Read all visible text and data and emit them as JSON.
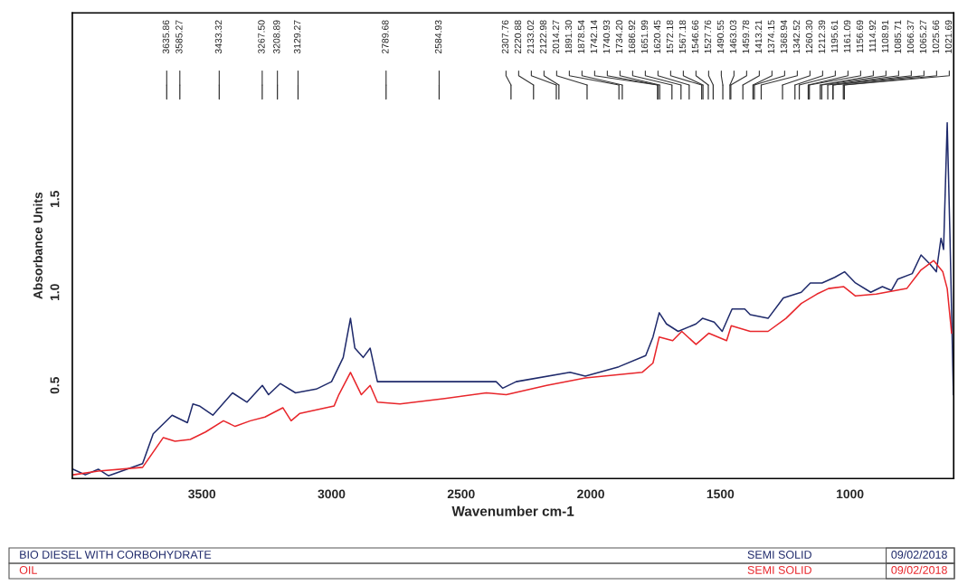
{
  "chart_data": {
    "type": "line",
    "xlabel": "Wavenumber cm-1",
    "ylabel": "Absorbance Units",
    "xlim": [
      4000,
      600
    ],
    "xticks": [
      3500,
      3000,
      2500,
      2000,
      1500,
      1000
    ],
    "ylim": [
      0,
      2.5
    ],
    "yticks": [
      0.5,
      {
        "value": 1.0,
        "label": "1.0"
      },
      1.5
    ],
    "grid": false,
    "legend": "bottom",
    "line_style": "solid",
    "marker": "none",
    "series": [
      {
        "name": "BIO DIESEL WITH CORBOHYDRATE",
        "color": "#1f2a6b",
        "x": [
          3997,
          3950,
          3900,
          3861,
          3729,
          3688,
          3615,
          3556,
          3535,
          3510,
          3458,
          3382,
          3326,
          3267,
          3243,
          3198,
          3139,
          3059,
          3000,
          2955,
          2927,
          2910,
          2878,
          2851,
          2823,
          2677,
          2503,
          2365,
          2340,
          2288,
          2080,
          2021,
          1892,
          1788,
          1760,
          1736,
          1708,
          1663,
          1594,
          1569,
          1524,
          1493,
          1455,
          1406,
          1385,
          1316,
          1257,
          1188,
          1153,
          1108,
          1059,
          1021,
          979,
          920,
          875,
          840,
          816,
          760,
          726,
          691,
          667,
          649,
          639,
          625,
          615,
          601
        ],
        "values": [
          0.05,
          0.02,
          0.05,
          0.015,
          0.08,
          0.24,
          0.34,
          0.3,
          0.4,
          0.39,
          0.34,
          0.46,
          0.41,
          0.5,
          0.45,
          0.51,
          0.46,
          0.48,
          0.52,
          0.65,
          0.86,
          0.7,
          0.65,
          0.7,
          0.52,
          0.52,
          0.52,
          0.52,
          0.485,
          0.52,
          0.57,
          0.55,
          0.6,
          0.66,
          0.76,
          0.89,
          0.83,
          0.79,
          0.83,
          0.86,
          0.84,
          0.79,
          0.91,
          0.91,
          0.88,
          0.86,
          0.97,
          1.0,
          1.05,
          1.05,
          1.08,
          1.11,
          1.05,
          1.0,
          1.03,
          1.01,
          1.07,
          1.1,
          1.2,
          1.15,
          1.11,
          1.29,
          1.23,
          1.91,
          1.34,
          0.45
        ]
      },
      {
        "name": "OIL",
        "color": "#e8262b",
        "x": [
          3997,
          3900,
          3729,
          3649,
          3604,
          3545,
          3486,
          3417,
          3372,
          3313,
          3257,
          3188,
          3156,
          3122,
          2990,
          2972,
          2927,
          2885,
          2851,
          2823,
          2736,
          2563,
          2403,
          2326,
          2170,
          2021,
          1802,
          1760,
          1736,
          1684,
          1649,
          1594,
          1545,
          1476,
          1458,
          1385,
          1316,
          1247,
          1188,
          1128,
          1083,
          1024,
          979,
          899,
          781,
          726,
          677,
          642,
          625,
          608
        ],
        "values": [
          0.02,
          0.04,
          0.06,
          0.22,
          0.2,
          0.21,
          0.25,
          0.31,
          0.28,
          0.31,
          0.33,
          0.38,
          0.31,
          0.35,
          0.39,
          0.45,
          0.57,
          0.45,
          0.5,
          0.41,
          0.4,
          0.43,
          0.46,
          0.45,
          0.5,
          0.54,
          0.57,
          0.62,
          0.76,
          0.74,
          0.79,
          0.72,
          0.78,
          0.74,
          0.82,
          0.79,
          0.79,
          0.86,
          0.94,
          0.99,
          1.02,
          1.03,
          0.98,
          0.99,
          1.02,
          1.12,
          1.17,
          1.11,
          1.02,
          0.78
        ]
      }
    ],
    "annotations": [
      "3635.86",
      "3585.27",
      "3433.32",
      "3267.50",
      "3208.89",
      "3129.27",
      "2789.68",
      "2584.93",
      "2307.76",
      "2220.88",
      "2133.02",
      "2122.98",
      "2014.27",
      "1891.30",
      "1878.54",
      "1742.14",
      "1740.93",
      "1734.20",
      "1686.92",
      "1651.99",
      "1620.45",
      "1572.18",
      "1567.18",
      "1546.66",
      "1527.76",
      "1490.55",
      "1463.03",
      "1459.78",
      "1413.21",
      "1374.15",
      "1368.94",
      "1342.52",
      "1260.30",
      "1212.39",
      "1195.61",
      "1161.09",
      "1156.69",
      "1114.92",
      "1108.91",
      "1085.71",
      "1066.37",
      "1065.27",
      "1025.66",
      "1021.69",
      "SEMI SOLID",
      "09/02/2018",
      "SEMI SOLID",
      "09/02/2018"
    ]
  }
}
